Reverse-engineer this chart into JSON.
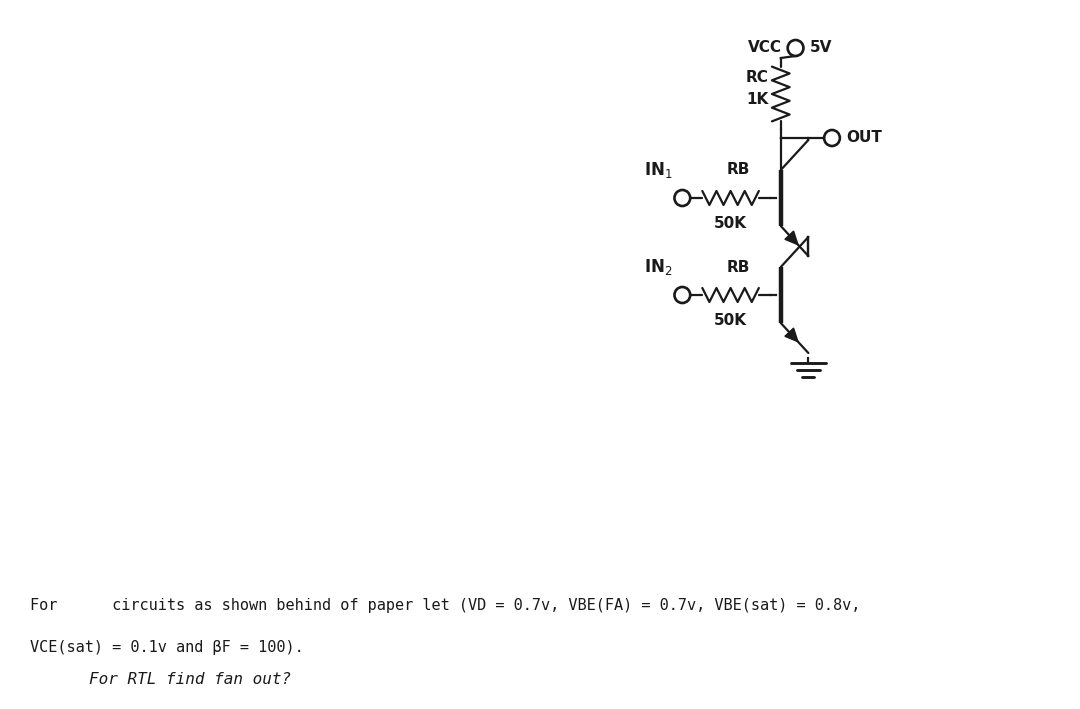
{
  "background_color": "#ffffff",
  "text_line1": "For      circuits as shown behind of paper let (VD = 0.7v, VBE(FA) = 0.7v, VBE(sat) = 0.8v,",
  "text_line2": "VCE(sat) = 0.1v and βF = 100).",
  "text_line3": "For RTL find fan out?",
  "text_color": "#1a1a1a",
  "circuit_color": "#1a1a1a",
  "lw": 1.6
}
